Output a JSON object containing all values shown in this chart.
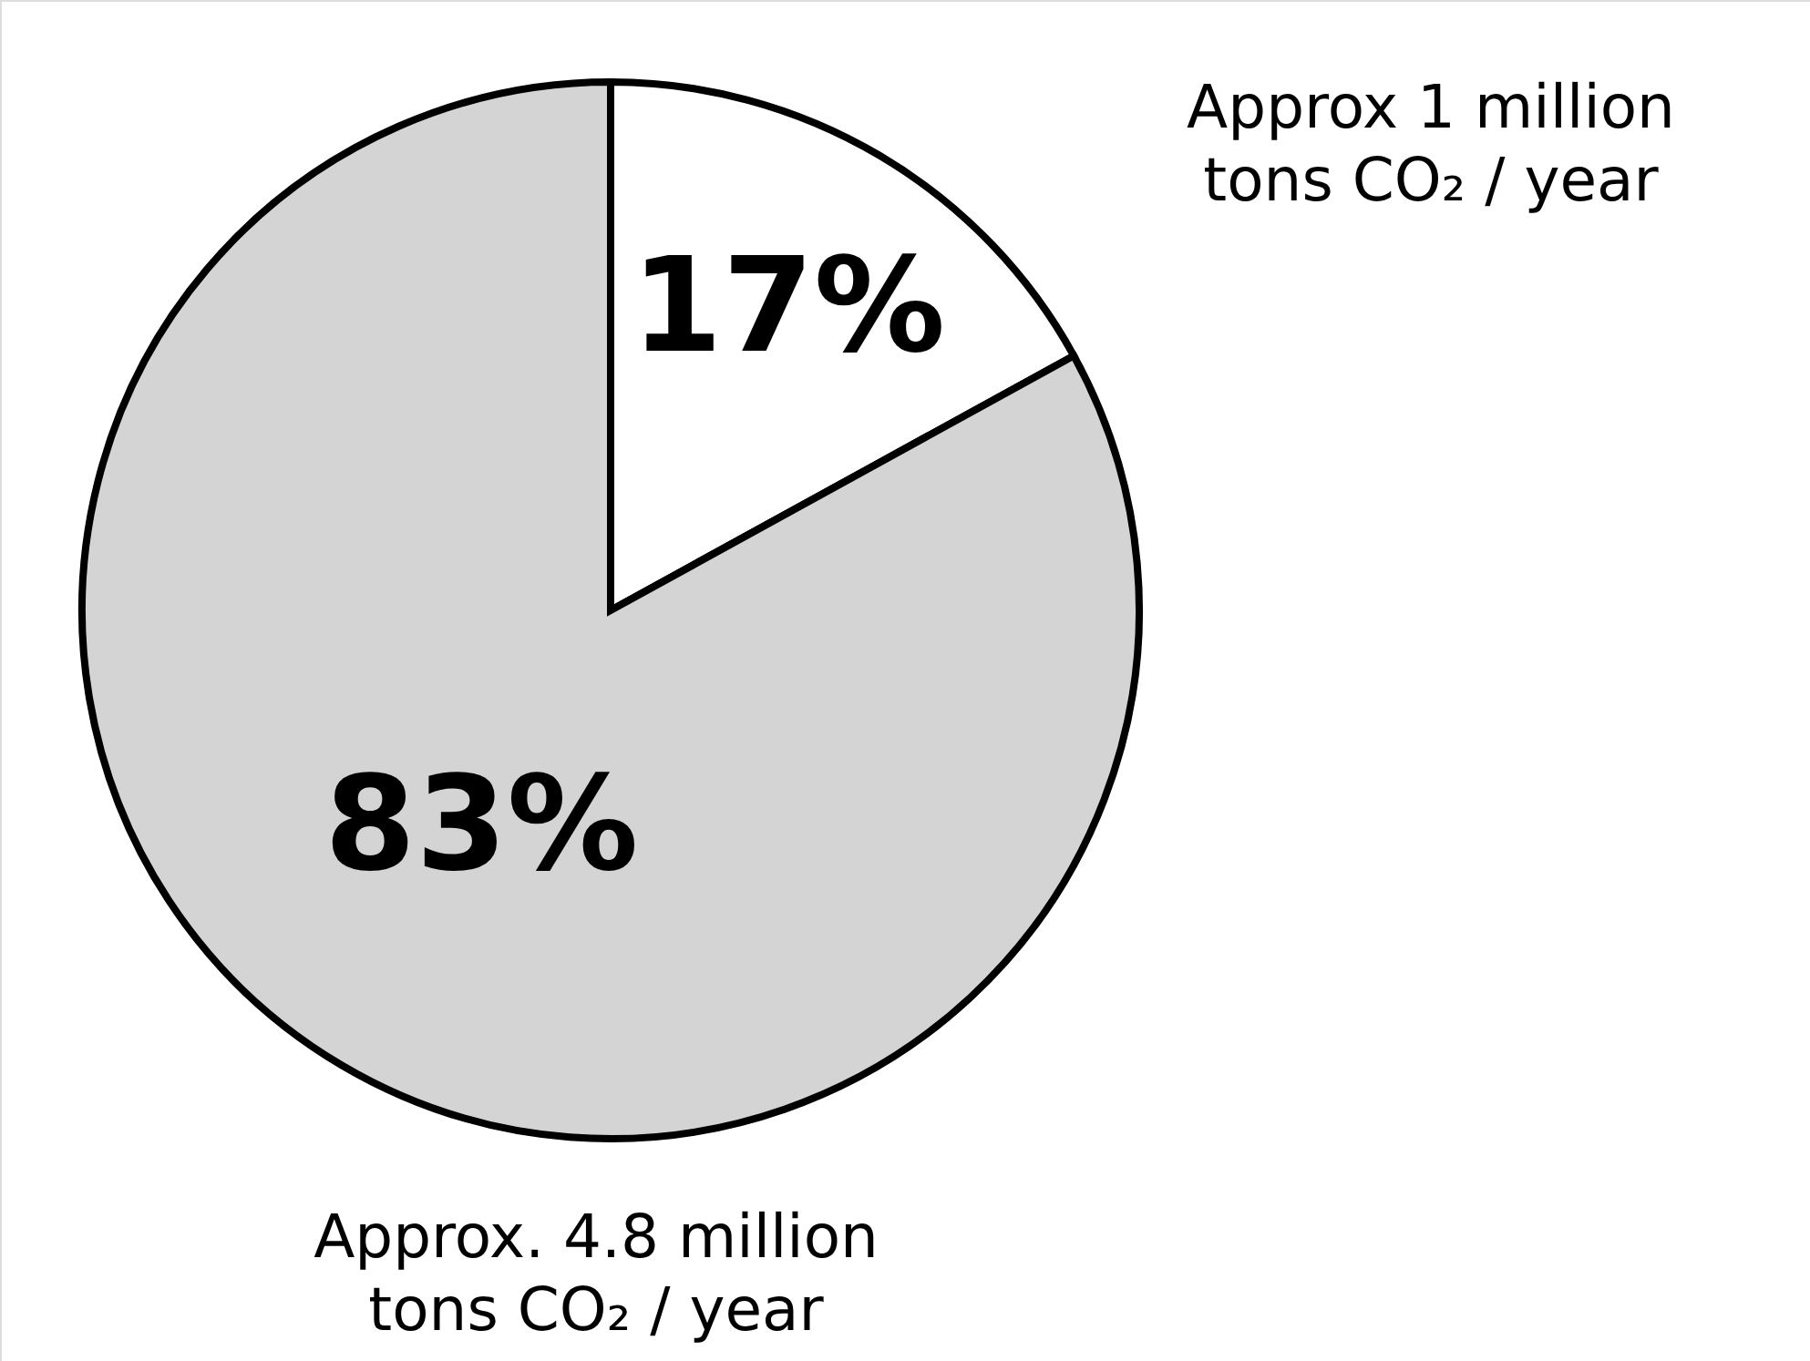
{
  "chart_data": {
    "type": "pie",
    "categories": [
      "Approx 1 million tons CO₂ / year",
      "Approx. 4.8 million tons CO₂ / year"
    ],
    "values": [
      17,
      83
    ],
    "colors": [
      "#ffffff",
      "#d4d4d4"
    ],
    "value_labels": [
      "17%",
      "83%"
    ]
  }
}
